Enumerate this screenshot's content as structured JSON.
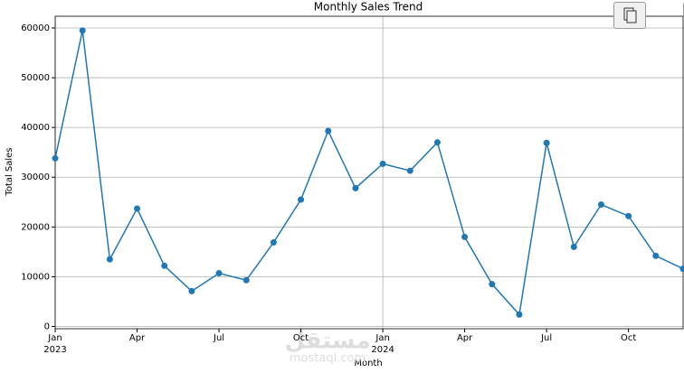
{
  "chart_data": {
    "type": "line",
    "title": "Monthly Sales Trend",
    "x_label": "Month",
    "y_label": "Total Sales",
    "x": [
      "2023-01",
      "2023-02",
      "2023-03",
      "2023-04",
      "2023-05",
      "2023-06",
      "2023-07",
      "2023-08",
      "2023-09",
      "2023-10",
      "2023-11",
      "2023-12",
      "2024-01",
      "2024-02",
      "2024-03",
      "2024-04",
      "2024-05",
      "2024-06",
      "2024-07",
      "2024-08",
      "2024-09",
      "2024-10",
      "2024-11",
      "2024-12"
    ],
    "series": [
      {
        "color": "#1f77b4",
        "values": [
          33800,
          59500,
          13500,
          23700,
          12200,
          7100,
          10700,
          9300,
          16900,
          25500,
          39300,
          27800,
          32700,
          31300,
          37000,
          18000,
          8500,
          2400,
          36900,
          16000,
          24500,
          22200,
          14200,
          11600
        ]
      }
    ],
    "xlim": [
      "2023-01",
      "2024-12"
    ],
    "xticks": [
      {
        "value": "2023-01",
        "label": "Jan",
        "sublabel": "2023"
      },
      {
        "value": "2023-04",
        "label": "Apr"
      },
      {
        "value": "2023-07",
        "label": "Jul"
      },
      {
        "value": "2023-10",
        "label": "Oct"
      },
      {
        "value": "2024-01",
        "label": "Jan",
        "sublabel": "2024"
      },
      {
        "value": "2024-04",
        "label": "Apr"
      },
      {
        "value": "2024-07",
        "label": "Jul"
      },
      {
        "value": "2024-10",
        "label": "Oct"
      }
    ],
    "ylim": [
      -455,
      62355
    ],
    "yticks": [
      0,
      10000,
      20000,
      30000,
      40000,
      50000,
      60000
    ],
    "grid": true,
    "watermark": "مستقل",
    "watermark_sub": "mostaql.com"
  }
}
